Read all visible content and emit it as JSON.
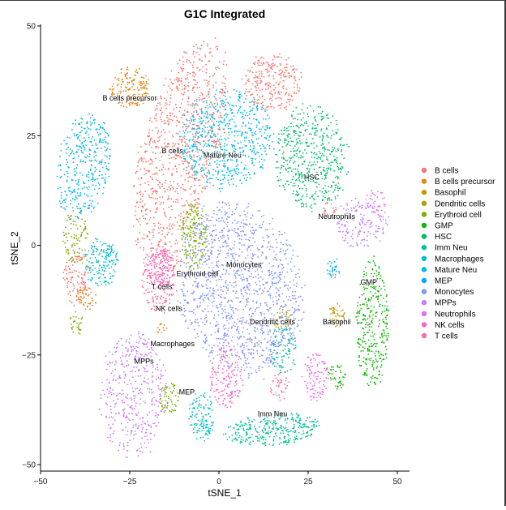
{
  "chart_data": {
    "type": "scatter",
    "title": "G1C Integrated",
    "xlabel": "tSNE_1",
    "ylabel": "tSNE_2",
    "xlim": [
      -50,
      50
    ],
    "ylim": [
      -50,
      50
    ],
    "x_ticks": [
      -50,
      -25,
      0,
      25,
      50
    ],
    "y_ticks": [
      -50,
      -25,
      0,
      25,
      50
    ],
    "x_tick_labels": [
      "−50",
      "−25",
      "0",
      "25",
      "50"
    ],
    "y_tick_labels": [
      "−50",
      "−25",
      "0",
      "25",
      "50"
    ],
    "grid": false,
    "legend_position": "right",
    "point_size_note": "dense point clouds (~tens of thousands of cells)",
    "series": [
      {
        "name": "B cells",
        "color": "#F8766D",
        "clusters": [
          {
            "cx": -11,
            "cy": 22,
            "rx": 11,
            "ry": 28,
            "n": 900,
            "rot": -0.35
          },
          {
            "cx": 15,
            "cy": 37,
            "rx": 9,
            "ry": 7,
            "n": 260,
            "rot": 0
          },
          {
            "cx": -40,
            "cy": -7,
            "rx": 4,
            "ry": 7,
            "n": 110,
            "rot": 0
          },
          {
            "cx": -13,
            "cy": -3,
            "rx": 3,
            "ry": 3,
            "n": 30,
            "rot": 0
          },
          {
            "cx": 31,
            "cy": 8,
            "rx": 2,
            "ry": 2,
            "n": 20,
            "rot": 0
          }
        ]
      },
      {
        "name": "B cells precursor",
        "color": "#E68613",
        "clusters": [
          {
            "cx": -25,
            "cy": 36,
            "rx": 6,
            "ry": 5,
            "n": 160,
            "rot": 0
          },
          {
            "cx": -37,
            "cy": -12,
            "rx": 3,
            "ry": 3,
            "n": 40,
            "rot": 0
          },
          {
            "cx": -16,
            "cy": -19,
            "rx": 1.5,
            "ry": 1.5,
            "n": 12,
            "rot": 0
          }
        ]
      },
      {
        "name": "Basophil",
        "color": "#CD9600",
        "clusters": [
          {
            "cx": 33,
            "cy": -16,
            "rx": 2.5,
            "ry": 3,
            "n": 50,
            "rot": 0
          }
        ]
      },
      {
        "name": "Dendritic cells",
        "color": "#ABA300",
        "clusters": [
          {
            "cx": 18,
            "cy": -17,
            "rx": 3,
            "ry": 3,
            "n": 40,
            "rot": 0
          }
        ]
      },
      {
        "name": "Erythroid cell",
        "color": "#7CAE00",
        "clusters": [
          {
            "cx": -7,
            "cy": 2,
            "rx": 4,
            "ry": 8,
            "n": 180,
            "rot": 0
          },
          {
            "cx": -40,
            "cy": 2,
            "rx": 4,
            "ry": 7,
            "n": 90,
            "rot": 0
          },
          {
            "cx": -14,
            "cy": -35,
            "rx": 3,
            "ry": 4,
            "n": 60,
            "rot": 0
          },
          {
            "cx": -40,
            "cy": -18,
            "rx": 2,
            "ry": 3,
            "n": 30,
            "rot": 0
          }
        ]
      },
      {
        "name": "GMP",
        "color": "#0CB702",
        "clusters": [
          {
            "cx": 43,
            "cy": -18,
            "rx": 5,
            "ry": 16,
            "n": 320,
            "rot": 0
          },
          {
            "cx": 33,
            "cy": -30,
            "rx": 3,
            "ry": 3,
            "n": 40,
            "rot": 0
          }
        ]
      },
      {
        "name": "HSC",
        "color": "#00BE67",
        "clusters": [
          {
            "cx": 26,
            "cy": 20,
            "rx": 11,
            "ry": 13,
            "n": 520,
            "rot": 0.15
          }
        ]
      },
      {
        "name": "Imm Neu",
        "color": "#00C19A",
        "clusters": [
          {
            "cx": 15,
            "cy": -42,
            "rx": 14,
            "ry": 4,
            "n": 320,
            "rot": 0.08
          },
          {
            "cx": 18,
            "cy": -24,
            "rx": 4,
            "ry": 6,
            "n": 90,
            "rot": 0
          }
        ]
      },
      {
        "name": "Macrophages",
        "color": "#00BFC4",
        "clusters": [
          {
            "cx": -33,
            "cy": -4,
            "rx": 5,
            "ry": 6,
            "n": 160,
            "rot": 0
          },
          {
            "cx": -5,
            "cy": -39,
            "rx": 4,
            "ry": 6,
            "n": 120,
            "rot": 0
          }
        ]
      },
      {
        "name": "Mature Neu",
        "color": "#00B8E7",
        "clusters": [
          {
            "cx": 2,
            "cy": 24,
            "rx": 14,
            "ry": 12,
            "n": 620,
            "rot": 0
          },
          {
            "cx": -38,
            "cy": 18,
            "rx": 8,
            "ry": 13,
            "n": 360,
            "rot": -0.2
          }
        ]
      },
      {
        "name": "MEP",
        "color": "#00A9FF",
        "clusters": [
          {
            "cx": 32,
            "cy": -5,
            "rx": 2,
            "ry": 3,
            "n": 30,
            "rot": 0
          }
        ]
      },
      {
        "name": "Monocytes",
        "color": "#8494FF",
        "clusters": [
          {
            "cx": 6,
            "cy": -10,
            "rx": 18,
            "ry": 22,
            "n": 1300,
            "rot": 0.45
          }
        ]
      },
      {
        "name": "MPPs",
        "color": "#C77CFF",
        "clusters": [
          {
            "cx": -24,
            "cy": -34,
            "rx": 10,
            "ry": 15,
            "n": 420,
            "rot": 0
          },
          {
            "cx": 40,
            "cy": 5,
            "rx": 8,
            "ry": 6,
            "n": 160,
            "rot": 0
          }
        ]
      },
      {
        "name": "Neutrophils",
        "color": "#ED68ED",
        "clusters": [
          {
            "cx": 27,
            "cy": -30,
            "rx": 4,
            "ry": 6,
            "n": 100,
            "rot": 0
          },
          {
            "cx": 44,
            "cy": 10,
            "rx": 3,
            "ry": 3,
            "n": 30,
            "rot": 0
          }
        ]
      },
      {
        "name": "NK cells",
        "color": "#FF61CC",
        "clusters": [
          {
            "cx": 2,
            "cy": -30,
            "rx": 5,
            "ry": 8,
            "n": 150,
            "rot": 0
          },
          {
            "cx": -16,
            "cy": -5,
            "rx": 4,
            "ry": 5,
            "n": 90,
            "rot": 0
          }
        ]
      },
      {
        "name": "T cells",
        "color": "#FF68A1",
        "clusters": [
          {
            "cx": -17,
            "cy": -8,
            "rx": 5,
            "ry": 8,
            "n": 200,
            "rot": 0
          },
          {
            "cx": 17,
            "cy": -32,
            "rx": 3,
            "ry": 4,
            "n": 40,
            "rot": 0
          }
        ]
      }
    ],
    "annotations": [
      {
        "text": "B cells precursor",
        "x": -25,
        "y": 33
      },
      {
        "text": "B cells",
        "x": -13,
        "y": 21
      },
      {
        "text": "Mature Neu",
        "x": 1,
        "y": 20
      },
      {
        "text": "HSC",
        "x": 26,
        "y": 15
      },
      {
        "text": "Neutrophils",
        "x": 33,
        "y": 6
      },
      {
        "text": "Monocytes",
        "x": 7,
        "y": -5
      },
      {
        "text": "Erythroid cell",
        "x": -6,
        "y": -7
      },
      {
        "text": "T cells",
        "x": -16,
        "y": -10
      },
      {
        "text": "GMP",
        "x": 42,
        "y": -9
      },
      {
        "text": "NK cells",
        "x": -14,
        "y": -15
      },
      {
        "text": "Dendritic cells",
        "x": 15,
        "y": -18
      },
      {
        "text": "Basophil",
        "x": 33,
        "y": -18
      },
      {
        "text": "Macrophages",
        "x": -13,
        "y": -23
      },
      {
        "text": "MPPs",
        "x": -21,
        "y": -27
      },
      {
        "text": "MEP",
        "x": -9,
        "y": -34
      },
      {
        "text": "Imm Neu",
        "x": 15,
        "y": -39
      }
    ]
  }
}
